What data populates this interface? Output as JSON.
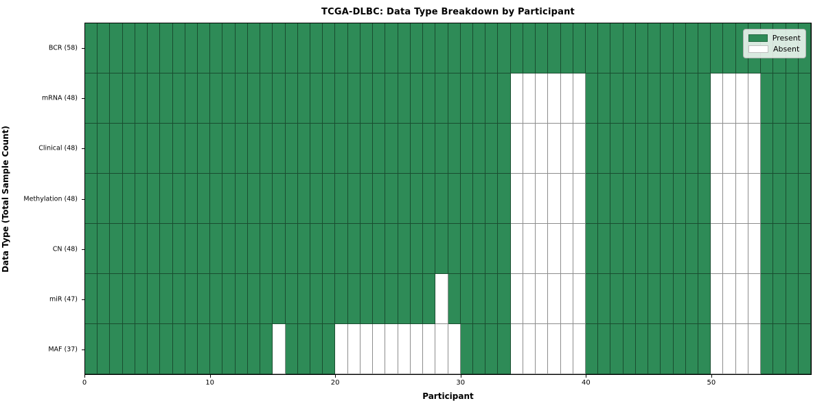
{
  "chart_data": {
    "type": "heatmap",
    "title": "TCGA-DLBC: Data Type Breakdown by Participant",
    "xlabel": "Participant",
    "ylabel": "Data Type (Total Sample Count)",
    "n_participants": 58,
    "x_ticks": [
      0,
      10,
      20,
      30,
      40,
      50
    ],
    "rows": [
      {
        "label": "BCR (58)",
        "data_type": "BCR",
        "present_count": 58,
        "absent_participants": []
      },
      {
        "label": "mRNA (48)",
        "data_type": "mRNA",
        "present_count": 48,
        "absent_participants": [
          34,
          35,
          36,
          37,
          38,
          39,
          50,
          51,
          52,
          53
        ]
      },
      {
        "label": "Clinical (48)",
        "data_type": "Clinical",
        "present_count": 48,
        "absent_participants": [
          34,
          35,
          36,
          37,
          38,
          39,
          50,
          51,
          52,
          53
        ]
      },
      {
        "label": "Methylation (48)",
        "data_type": "Methylation",
        "present_count": 48,
        "absent_participants": [
          34,
          35,
          36,
          37,
          38,
          39,
          50,
          51,
          52,
          53
        ]
      },
      {
        "label": "CN (48)",
        "data_type": "CN",
        "present_count": 48,
        "absent_participants": [
          34,
          35,
          36,
          37,
          38,
          39,
          50,
          51,
          52,
          53
        ]
      },
      {
        "label": "miR (47)",
        "data_type": "miR",
        "present_count": 47,
        "absent_participants": [
          28,
          34,
          35,
          36,
          37,
          38,
          39,
          50,
          51,
          52,
          53
        ]
      },
      {
        "label": "MAF (37)",
        "data_type": "MAF",
        "present_count": 37,
        "absent_participants": [
          15,
          20,
          21,
          22,
          23,
          24,
          25,
          26,
          27,
          28,
          29,
          34,
          35,
          36,
          37,
          38,
          39,
          50,
          51,
          52,
          53
        ]
      }
    ],
    "legend": [
      {
        "label": "Present",
        "color": "#2e8b57"
      },
      {
        "label": "Absent",
        "color": "#ffffff"
      }
    ],
    "colors": {
      "present": "#2e8b57",
      "absent": "#ffffff",
      "grid_line": "rgba(0,0,0,0.45)"
    },
    "legend_position": "upper right",
    "grid": true
  }
}
